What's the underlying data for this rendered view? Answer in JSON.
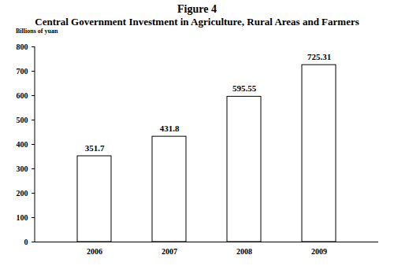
{
  "chart_data": {
    "type": "bar",
    "title": "Figure 4",
    "subtitle": "Central Government Investment in Agriculture, Rural Areas and Farmers",
    "y_label": "Billions of yuan",
    "categories": [
      "2006",
      "2007",
      "2008",
      "2009"
    ],
    "values": [
      351.7,
      431.8,
      595.55,
      725.31
    ],
    "color": "#ffffff",
    "ylim": [
      0,
      800
    ],
    "yticks": [
      0,
      100,
      200,
      300,
      400,
      500,
      600,
      700,
      800
    ],
    "grid": false,
    "data_labels": true
  }
}
